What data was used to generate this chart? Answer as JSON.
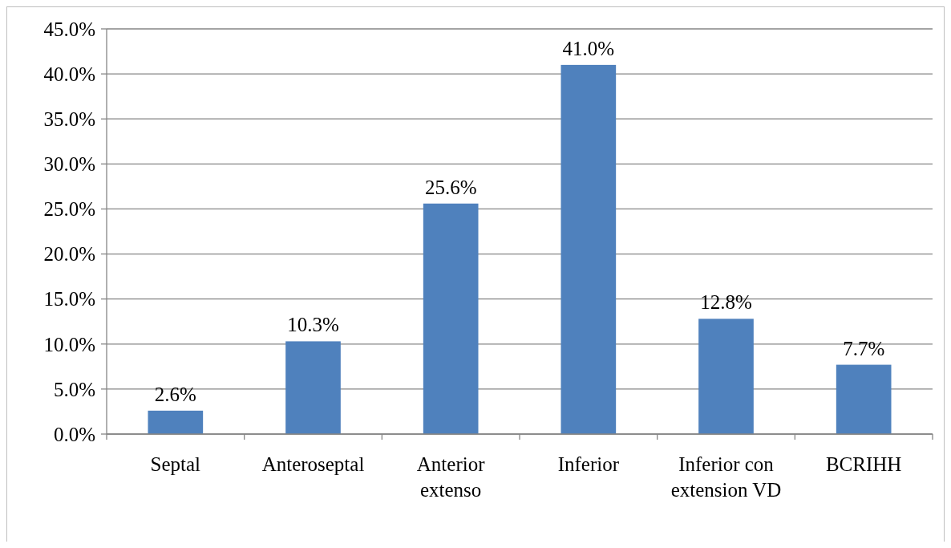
{
  "chart_data": {
    "type": "bar",
    "categories": [
      "Septal",
      "Anteroseptal",
      "Anterior extenso",
      "Inferior",
      "Inferior con extension VD",
      "BCRIHH"
    ],
    "values": [
      2.6,
      10.3,
      25.6,
      41.0,
      12.8,
      7.7
    ],
    "value_labels": [
      "2.6%",
      "10.3%",
      "25.6%",
      "41.0%",
      "12.8%",
      "7.7%"
    ],
    "color": "#4f81bd",
    "ylim": [
      0,
      45
    ],
    "yticks": [
      {
        "value": 0,
        "label": "0.0%"
      },
      {
        "value": 5,
        "label": "5.0%"
      },
      {
        "value": 10,
        "label": "10.0%"
      },
      {
        "value": 15,
        "label": "15.0%"
      },
      {
        "value": 20,
        "label": "20.0%"
      },
      {
        "value": 25,
        "label": "25.0%"
      },
      {
        "value": 30,
        "label": "30.0%"
      },
      {
        "value": 35,
        "label": "35.0%"
      },
      {
        "value": 40,
        "label": "40.0%"
      },
      {
        "value": 45,
        "label": "45.0%"
      }
    ],
    "grid": "y"
  }
}
